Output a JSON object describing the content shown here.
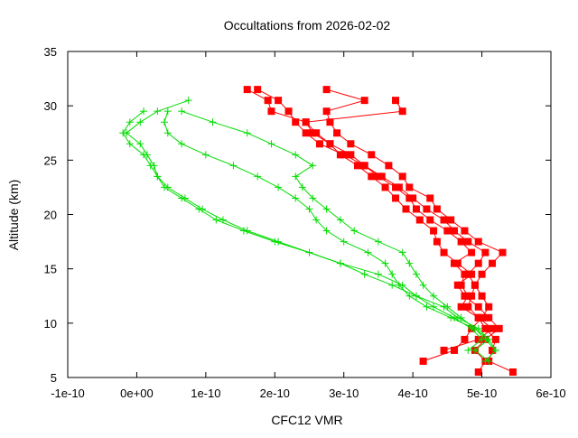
{
  "chart_data": {
    "type": "line",
    "title": "Occultations from 2026-02-02",
    "xlabel": "CFC12 VMR",
    "ylabel": "Altitude (km)",
    "xlim": [
      -1e-10,
      6e-10
    ],
    "ylim": [
      5,
      35
    ],
    "x_ticks": [
      -1e-10,
      0,
      1e-10,
      2e-10,
      3e-10,
      4e-10,
      5e-10,
      6e-10
    ],
    "x_tick_labels": [
      "-1e-10",
      "0e+00",
      "1e-10",
      "2e-10",
      "3e-10",
      "4e-10",
      "5e-10",
      "6e-10"
    ],
    "y_ticks": [
      5,
      10,
      15,
      20,
      25,
      30,
      35
    ],
    "y_tick_labels": [
      "5",
      "10",
      "15",
      "20",
      "25",
      "30",
      "35"
    ],
    "grid": false,
    "colors": {
      "red": "#ff0000",
      "green": "#00dd00",
      "axis": "#000000"
    },
    "series": [
      {
        "name": "profile-red-1",
        "color": "#ff0000",
        "marker": "square",
        "altitude": [
          5.5,
          6.5,
          7.5,
          8.5,
          9.5,
          10.5,
          11.5,
          12.5,
          13.5,
          14.5,
          15.5,
          16.5,
          17.5,
          18.5,
          19.5,
          20.5,
          21.5,
          22.5,
          23.5,
          24.5,
          25.5,
          26.5,
          27.5,
          28.5,
          29.5,
          30.5,
          31.5
        ],
        "values": [
          5.45e-10,
          5.1e-10,
          5.15e-10,
          5.2e-10,
          5.05e-10,
          4.95e-10,
          4.8e-10,
          4.85e-10,
          4.9e-10,
          5e-10,
          5.15e-10,
          5.3e-10,
          4.95e-10,
          4.75e-10,
          4.55e-10,
          4.35e-10,
          4.25e-10,
          3.95e-10,
          3.85e-10,
          3.65e-10,
          3.4e-10,
          3.1e-10,
          2.9e-10,
          2.8e-10,
          2.75e-10,
          3.3e-10,
          2.75e-10
        ]
      },
      {
        "name": "profile-red-2",
        "color": "#ff0000",
        "marker": "square",
        "altitude": [
          6.5,
          7.5,
          8.5,
          9.5,
          10.5,
          11.5,
          12.5,
          13.5,
          14.5,
          15.5,
          16.5,
          17.5,
          18.5,
          19.5,
          20.5,
          21.5,
          22.5,
          23.5,
          24.5,
          25.5,
          26.5,
          27.5,
          28.5,
          29.5,
          30.5,
          31.5
        ],
        "values": [
          4.15e-10,
          4.6e-10,
          4.75e-10,
          4.85e-10,
          5e-10,
          5.1e-10,
          5e-10,
          4.9e-10,
          4.8e-10,
          4.95e-10,
          5.05e-10,
          4.8e-10,
          4.6e-10,
          4.45e-10,
          4.2e-10,
          4e-10,
          3.8e-10,
          3.55e-10,
          3.3e-10,
          3e-10,
          2.65e-10,
          2.45e-10,
          2.3e-10,
          2.2e-10,
          2.05e-10,
          1.75e-10
        ]
      },
      {
        "name": "profile-red-3",
        "color": "#ff0000",
        "marker": "square",
        "altitude": [
          5.5,
          6.5,
          7.5,
          8.5,
          9.5,
          10.5,
          11.5,
          12.5,
          13.5,
          14.5,
          15.5,
          16.5,
          17.5,
          18.5,
          19.5,
          20.5,
          21.5,
          22.5,
          23.5,
          24.5,
          25.5,
          26.5,
          27.5,
          28.5,
          29.5,
          30.5
        ],
        "values": [
          4.95e-10,
          5.05e-10,
          4.9e-10,
          5.05e-10,
          5.25e-10,
          5.1e-10,
          4.95e-10,
          4.75e-10,
          4.65e-10,
          4.85e-10,
          4.65e-10,
          4.45e-10,
          4.35e-10,
          4.3e-10,
          4.1e-10,
          3.9e-10,
          3.75e-10,
          3.6e-10,
          3.4e-10,
          3.2e-10,
          2.95e-10,
          2.8e-10,
          2.6e-10,
          2.45e-10,
          3.85e-10,
          3.75e-10
        ]
      },
      {
        "name": "profile-red-4",
        "color": "#ff0000",
        "marker": "square",
        "altitude": [
          7.5,
          8.5,
          9.5,
          10.5,
          11.5,
          12.5,
          13.5,
          14.5,
          15.5,
          16.5,
          17.5,
          18.5,
          19.5,
          20.5,
          21.5,
          22.5,
          23.5,
          24.5,
          25.5,
          26.5,
          27.5,
          28.5,
          29.5,
          30.5,
          31.5
        ],
        "values": [
          4.45e-10,
          4.95e-10,
          5.15e-10,
          4.95e-10,
          4.7e-10,
          4.8e-10,
          4.7e-10,
          4.75e-10,
          4.6e-10,
          4.85e-10,
          4.7e-10,
          4.5e-10,
          4.25e-10,
          4.05e-10,
          3.95e-10,
          3.75e-10,
          3.5e-10,
          3.3e-10,
          3.1e-10,
          2.8e-10,
          2.55e-10,
          2.45e-10,
          1.95e-10,
          1.9e-10,
          1.6e-10
        ]
      },
      {
        "name": "profile-green-1",
        "color": "#00dd00",
        "marker": "plus",
        "altitude": [
          6.5,
          7.5,
          8.5,
          9.5,
          10.5,
          11.5,
          12.5,
          13.5,
          14.5,
          15.5,
          16.5,
          17.5,
          18.5,
          19.5,
          20.5,
          21.5,
          22.5,
          23.5,
          24.5,
          25.5,
          26.5,
          27.5,
          28.5,
          29.5,
          30.5
        ],
        "values": [
          5.05e-10,
          5.2e-10,
          5.1e-10,
          4.95e-10,
          4.65e-10,
          4.45e-10,
          4.05e-10,
          3.85e-10,
          3.5e-10,
          2.95e-10,
          2.5e-10,
          2e-10,
          1.55e-10,
          1.15e-10,
          9e-11,
          6.5e-11,
          4e-11,
          3e-11,
          2.5e-11,
          1.5e-11,
          5e-12,
          -1.5e-11,
          5e-12,
          3e-11,
          7.5e-11
        ]
      },
      {
        "name": "profile-green-2",
        "color": "#00dd00",
        "marker": "plus",
        "altitude": [
          7.5,
          8.5,
          9.5,
          10.5,
          11.5,
          12.5,
          13.5,
          14.5,
          15.5,
          16.5,
          17.5,
          18.5,
          19.5,
          20.5,
          21.5,
          22.5,
          23.5,
          24.5,
          25.5,
          26.5,
          27.5,
          28.5,
          29.5
        ],
        "values": [
          4.8e-10,
          5e-10,
          4.85e-10,
          4.6e-10,
          4.3e-10,
          4.05e-10,
          3.7e-10,
          3.3e-10,
          2.95e-10,
          2.5e-10,
          2.05e-10,
          1.6e-10,
          1.25e-10,
          9.5e-11,
          7e-11,
          4.5e-11,
          3e-11,
          2e-11,
          1e-11,
          -1e-11,
          -2e-11,
          -1e-11,
          1e-11
        ]
      },
      {
        "name": "profile-green-3",
        "color": "#00dd00",
        "marker": "plus",
        "altitude": [
          6.5,
          7.5,
          8.5,
          9.5,
          10.5,
          11.5,
          12.5,
          13.5,
          14.5,
          15.5,
          16.5,
          17.5,
          18.5,
          19.5,
          20.5,
          21.5,
          22.5,
          23.5,
          24.5,
          25.5,
          26.5,
          27.5,
          28.5,
          29.5
        ],
        "values": [
          5.1e-10,
          4.9e-10,
          5.1e-10,
          4.9e-10,
          4.55e-10,
          4.2e-10,
          3.95e-10,
          3.8e-10,
          3.7e-10,
          3.6e-10,
          3.35e-10,
          3e-10,
          2.75e-10,
          2.6e-10,
          2.5e-10,
          2.3e-10,
          2.05e-10,
          1.75e-10,
          1.4e-10,
          1e-10,
          6.5e-11,
          4.5e-11,
          4e-11,
          4.5e-11
        ]
      },
      {
        "name": "profile-green-4",
        "color": "#00dd00",
        "marker": "plus",
        "altitude": [
          7.5,
          8.5,
          9.5,
          10.5,
          11.5,
          12.5,
          13.5,
          14.5,
          15.5,
          16.5,
          17.5,
          18.5,
          19.5,
          20.5,
          21.5,
          22.5,
          23.5,
          24.5,
          25.5,
          26.5,
          27.5,
          28.5,
          29.5
        ],
        "values": [
          5.2e-10,
          5.05e-10,
          4.9e-10,
          4.7e-10,
          4.5e-10,
          4.3e-10,
          4.15e-10,
          4.05e-10,
          3.95e-10,
          3.85e-10,
          3.5e-10,
          3.15e-10,
          2.95e-10,
          2.75e-10,
          2.55e-10,
          2.4e-10,
          2.3e-10,
          2.55e-10,
          2.3e-10,
          1.95e-10,
          1.6e-10,
          1.1e-10,
          6.5e-11
        ]
      }
    ]
  }
}
